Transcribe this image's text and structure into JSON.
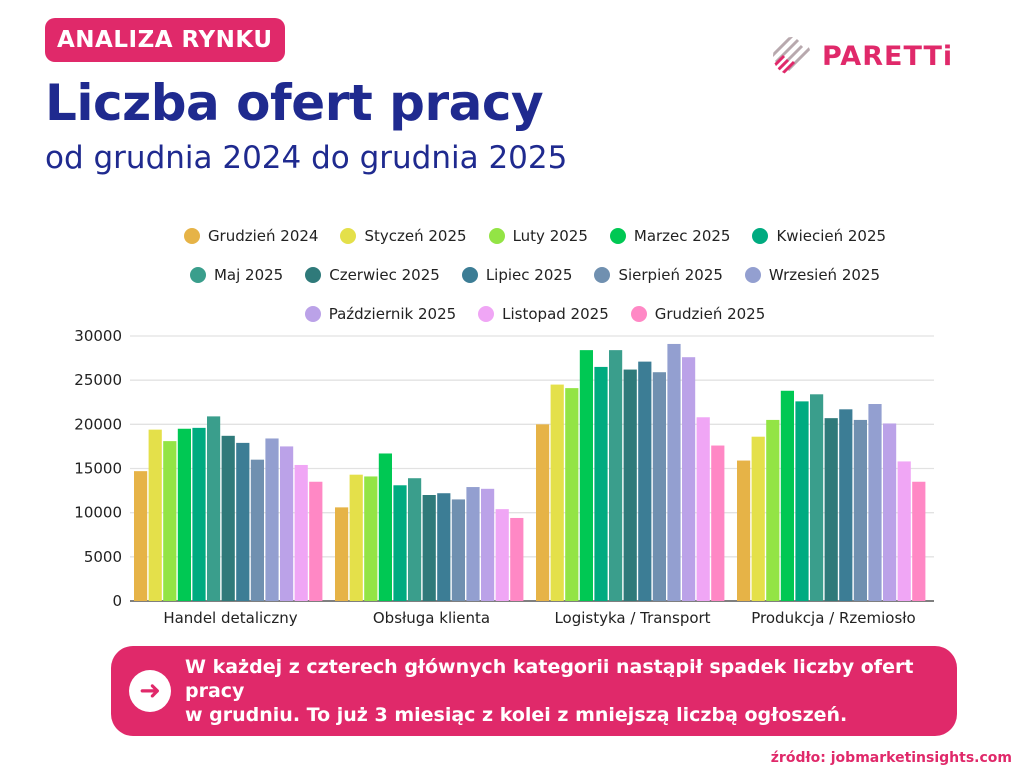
{
  "header": {
    "badge": "ANALIZA RYNKU",
    "title": "Liczba ofert pracy",
    "subtitle": "od grudnia 2024 do grudnia 2025"
  },
  "logo": {
    "text": "PARETTi",
    "color": "#E0296A"
  },
  "chart_data": {
    "type": "bar",
    "categories": [
      "Handel detaliczny",
      "Obsługa klienta",
      "Logistyka / Transport",
      "Produkcja / Rzemiosło"
    ],
    "ylim": [
      0,
      30000
    ],
    "yticks": [
      "0",
      "5000",
      "10000",
      "15000",
      "20000",
      "25000",
      "30000"
    ],
    "grid": true,
    "legend": "top",
    "series": [
      {
        "name": "Grudzień 2024",
        "color": "#E6B347",
        "values": [
          14700,
          10600,
          20000,
          15900
        ]
      },
      {
        "name": "Styczeń 2025",
        "color": "#E4E04A",
        "values": [
          19400,
          14300,
          24500,
          18600
        ]
      },
      {
        "name": "Luty 2025",
        "color": "#93E445",
        "values": [
          18100,
          14100,
          24100,
          20500
        ]
      },
      {
        "name": "Marzec 2025",
        "color": "#00C853",
        "values": [
          19500,
          16700,
          28400,
          23800
        ]
      },
      {
        "name": "Kwiecień 2025",
        "color": "#00AB80",
        "values": [
          19600,
          13100,
          26500,
          22600
        ]
      },
      {
        "name": "Maj 2025",
        "color": "#3A9E8C",
        "values": [
          20900,
          13900,
          28400,
          23400
        ]
      },
      {
        "name": "Czerwiec 2025",
        "color": "#2F7A7A",
        "values": [
          18700,
          12000,
          26200,
          20700
        ]
      },
      {
        "name": "Lipiec 2025",
        "color": "#3C7D95",
        "values": [
          17900,
          12200,
          27100,
          21700
        ]
      },
      {
        "name": "Sierpień 2025",
        "color": "#7090B0",
        "values": [
          16000,
          11500,
          25900,
          20500
        ]
      },
      {
        "name": "Wrzesień 2025",
        "color": "#939FD0",
        "values": [
          18400,
          12900,
          29100,
          22300
        ]
      },
      {
        "name": "Październik 2025",
        "color": "#BBA2E8",
        "values": [
          17500,
          12700,
          27600,
          20100
        ]
      },
      {
        "name": "Listopad 2025",
        "color": "#F0A6F5",
        "values": [
          15400,
          10400,
          20800,
          15800
        ]
      },
      {
        "name": "Grudzień 2025",
        "color": "#FF88C5",
        "values": [
          13500,
          9400,
          17600,
          13500
        ]
      }
    ]
  },
  "callout": {
    "line1": "W każdej z czterech głównych kategorii nastąpił spadek liczby ofert pracy",
    "line2": "w grudniu.  To już 3 miesiąc z kolei z mniejszą liczbą ogłoszeń.",
    "icon": "arrow-right-icon"
  },
  "source": "źródło: jobmarketinsights.com"
}
